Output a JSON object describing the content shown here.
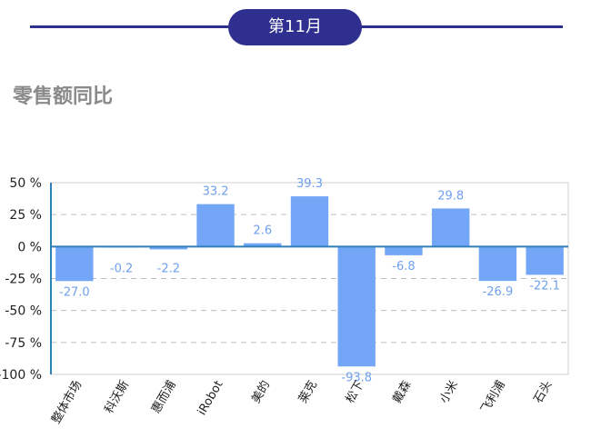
{
  "header": {
    "month_label": "第11月"
  },
  "section": {
    "title": "零售额同比"
  },
  "colors": {
    "bar": "#73a6f7",
    "axis": "#2f7fb8",
    "header": "#2e2f8f",
    "label": "#6fa0ee"
  },
  "chart_data": {
    "type": "bar",
    "title": "",
    "xlabel": "",
    "ylabel": "",
    "categories": [
      "整体市场",
      "科沃斯",
      "惠而浦",
      "iRobot",
      "美的",
      "莱克",
      "松下",
      "戴森",
      "小米",
      "飞利浦",
      "石头"
    ],
    "values": [
      -27.0,
      -0.2,
      -2.2,
      33.2,
      2.6,
      39.3,
      -93.8,
      -6.8,
      29.8,
      -26.9,
      -22.1
    ],
    "value_labels": [
      "-27.0",
      "-0.2",
      "-2.2",
      "33.2",
      "2.6",
      "39.3",
      "-93.8",
      "-6.8",
      "29.8",
      "-26.9",
      "-22.1"
    ],
    "ylim": [
      -100,
      50
    ],
    "yticks": [
      50,
      25,
      0,
      -25,
      -50,
      -75,
      -100
    ],
    "ytick_labels": [
      "50 %",
      "25 %",
      "0 %",
      "-25 %",
      "-50 %",
      "-75 %",
      "-100 %"
    ],
    "grid": true
  }
}
